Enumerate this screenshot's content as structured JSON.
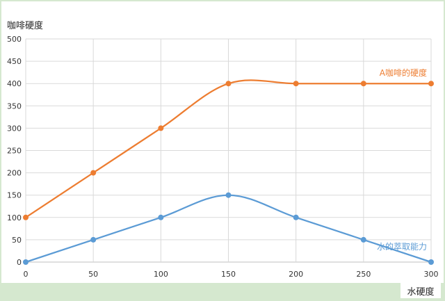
{
  "chart_data": {
    "type": "line",
    "ylabel": "咖啡硬度",
    "xlabel": "水硬度",
    "x": [
      0,
      50,
      100,
      150,
      200,
      250,
      300
    ],
    "xlim": [
      0,
      300
    ],
    "ylim": [
      0,
      500
    ],
    "x_ticks": [
      0,
      50,
      100,
      150,
      200,
      250,
      300
    ],
    "y_ticks": [
      0,
      50,
      100,
      150,
      200,
      250,
      300,
      350,
      400,
      450,
      500
    ],
    "grid": true,
    "smooth": true,
    "series": [
      {
        "name": "A咖啡的硬度",
        "values": [
          100,
          200,
          300,
          400,
          400,
          400,
          400
        ],
        "color": "#ed7d31"
      },
      {
        "name": "水的萃取能力",
        "values": [
          0,
          50,
          100,
          150,
          100,
          50,
          0
        ],
        "color": "#5b9bd5"
      }
    ]
  }
}
